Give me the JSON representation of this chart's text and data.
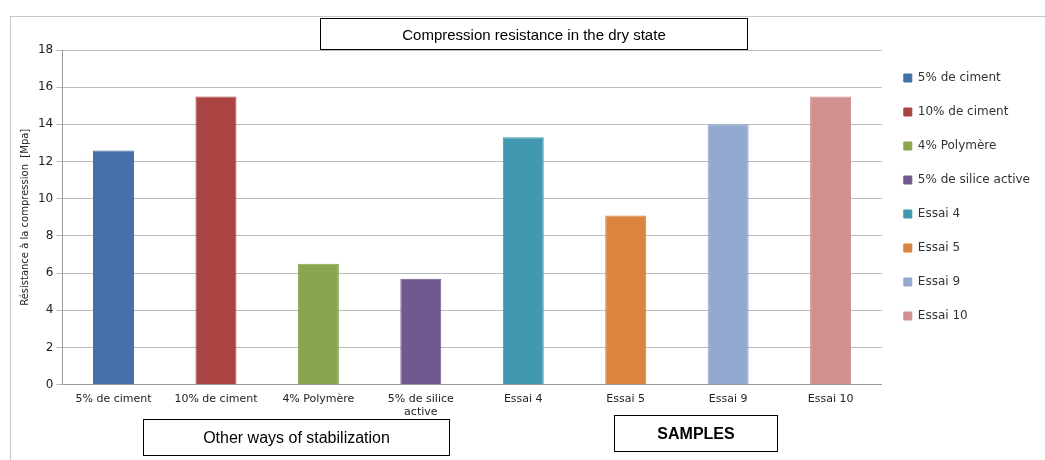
{
  "chart_data": {
    "type": "bar",
    "title": "Compression resistance in the dry state",
    "ylabel": "Résistance à la compression  [Mpa]",
    "categories": [
      "5% de ciment",
      "10% de ciment",
      "4% Polymère",
      "5% de silice active",
      "Essai 4",
      "Essai 5",
      "Essai 9",
      "Essai 10"
    ],
    "series": [
      {
        "name": "5% de ciment",
        "color": "#4470a8",
        "values": [
          12.6,
          null,
          null,
          null,
          null,
          null,
          null,
          null
        ]
      },
      {
        "name": "10% de ciment",
        "color": "#a94442",
        "values": [
          null,
          15.5,
          null,
          null,
          null,
          null,
          null,
          null
        ]
      },
      {
        "name": "4% Polymère",
        "color": "#89a54e",
        "values": [
          null,
          null,
          6.5,
          null,
          null,
          null,
          null,
          null
        ]
      },
      {
        "name": "5% de silice active",
        "color": "#71588f",
        "values": [
          null,
          null,
          null,
          5.7,
          null,
          null,
          null,
          null
        ]
      },
      {
        "name": "Essai 4",
        "color": "#4198af",
        "values": [
          null,
          null,
          null,
          null,
          13.3,
          null,
          null,
          null
        ]
      },
      {
        "name": "Essai 5",
        "color": "#db843d",
        "values": [
          null,
          null,
          null,
          null,
          null,
          9.1,
          null,
          null
        ]
      },
      {
        "name": "Essai 9",
        "color": "#93a9cf",
        "values": [
          null,
          null,
          null,
          null,
          null,
          null,
          14,
          null
        ]
      },
      {
        "name": "Essai 10",
        "color": "#d09190",
        "values": [
          null,
          null,
          null,
          null,
          null,
          null,
          null,
          15.5
        ]
      }
    ],
    "ylim": [
      0,
      18
    ],
    "yticks": [
      0,
      2,
      4,
      6,
      8,
      10,
      12,
      14,
      16,
      18
    ],
    "grid": "y",
    "legend": "right",
    "annotations": [
      "Other ways of stabilization",
      "SAMPLES"
    ]
  }
}
